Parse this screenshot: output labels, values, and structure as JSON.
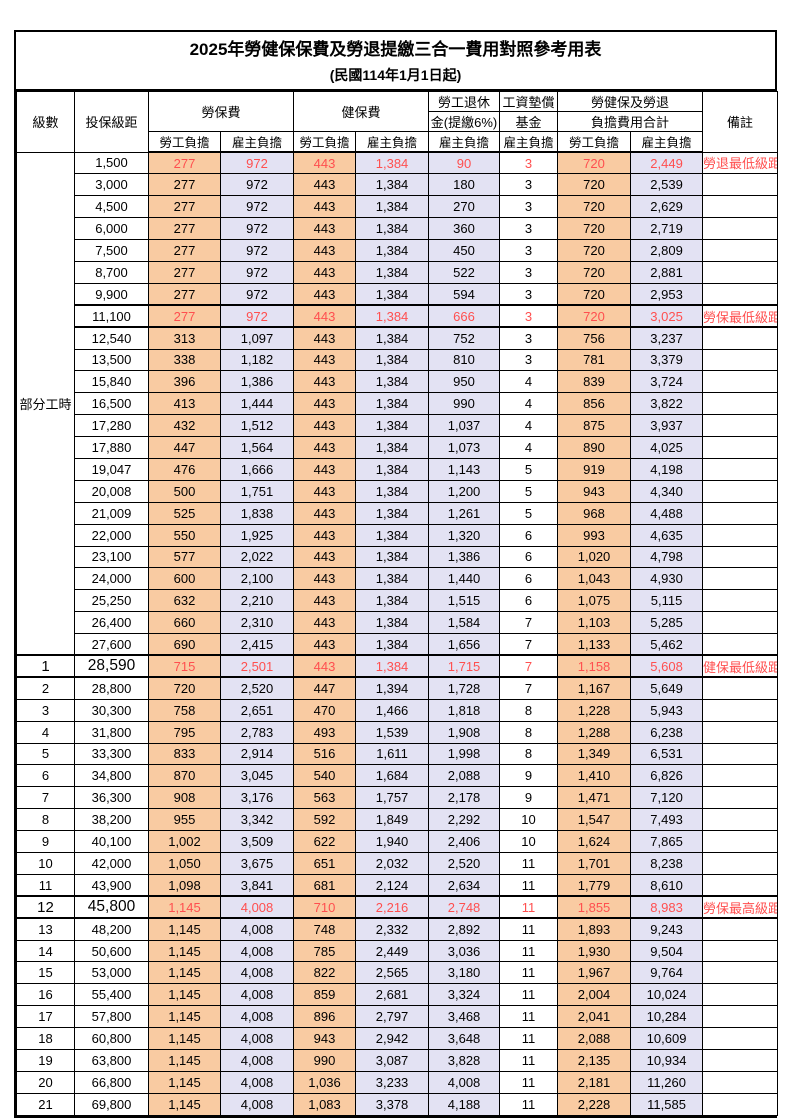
{
  "page_title": "2025年勞健保保費及勞退提繳三合一費用對照參考用表",
  "page_subtitle": "(民國114年1月1日起)",
  "colors": {
    "employee_col_bg": "#f9cba2",
    "employer_col_bg": "#e3e2f3",
    "highlight_red": "#ff4f4f",
    "border": "#000000"
  },
  "header": {
    "level": "級數",
    "salary_bracket": "投保級距",
    "labor_insurance": "勞保費",
    "health_insurance": "健保費",
    "pension_line1": "勞工退休",
    "pension_line2": "金(提繳6%)",
    "wage_fund_line1": "工資墊償",
    "wage_fund_line2": "基金",
    "total_line1": "勞健保及勞退",
    "total_line2": "負擔費用合計",
    "remark": "備註",
    "employee_burden": "勞工負擔",
    "employer_burden": "雇主負擔"
  },
  "table": {
    "part_time_label": "部分工時",
    "part_time_rowspan": 23,
    "rows": [
      {
        "pt": true,
        "salary": "1,500",
        "v": [
          "277",
          "972",
          "443",
          "1,384",
          "90",
          "3",
          "720",
          "2,449"
        ],
        "red": true,
        "remark": "勞退最低級距"
      },
      {
        "pt": true,
        "salary": "3,000",
        "v": [
          "277",
          "972",
          "443",
          "1,384",
          "180",
          "3",
          "720",
          "2,539"
        ]
      },
      {
        "pt": true,
        "salary": "4,500",
        "v": [
          "277",
          "972",
          "443",
          "1,384",
          "270",
          "3",
          "720",
          "2,629"
        ]
      },
      {
        "pt": true,
        "salary": "6,000",
        "v": [
          "277",
          "972",
          "443",
          "1,384",
          "360",
          "3",
          "720",
          "2,719"
        ]
      },
      {
        "pt": true,
        "salary": "7,500",
        "v": [
          "277",
          "972",
          "443",
          "1,384",
          "450",
          "3",
          "720",
          "2,809"
        ]
      },
      {
        "pt": true,
        "salary": "8,700",
        "v": [
          "277",
          "972",
          "443",
          "1,384",
          "522",
          "3",
          "720",
          "2,881"
        ]
      },
      {
        "pt": true,
        "salary": "9,900",
        "v": [
          "277",
          "972",
          "443",
          "1,384",
          "594",
          "3",
          "720",
          "2,953"
        ]
      },
      {
        "pt": true,
        "salary": "11,100",
        "v": [
          "277",
          "972",
          "443",
          "1,384",
          "666",
          "3",
          "720",
          "3,025"
        ],
        "red": true,
        "remark": "勞保最低級距",
        "thick": true
      },
      {
        "pt": true,
        "salary": "12,540",
        "v": [
          "313",
          "1,097",
          "443",
          "1,384",
          "752",
          "3",
          "756",
          "3,237"
        ]
      },
      {
        "pt": true,
        "salary": "13,500",
        "v": [
          "338",
          "1,182",
          "443",
          "1,384",
          "810",
          "3",
          "781",
          "3,379"
        ]
      },
      {
        "pt": true,
        "salary": "15,840",
        "v": [
          "396",
          "1,386",
          "443",
          "1,384",
          "950",
          "4",
          "839",
          "3,724"
        ]
      },
      {
        "pt": true,
        "salary": "16,500",
        "v": [
          "413",
          "1,444",
          "443",
          "1,384",
          "990",
          "4",
          "856",
          "3,822"
        ]
      },
      {
        "pt": true,
        "salary": "17,280",
        "v": [
          "432",
          "1,512",
          "443",
          "1,384",
          "1,037",
          "4",
          "875",
          "3,937"
        ]
      },
      {
        "pt": true,
        "salary": "17,880",
        "v": [
          "447",
          "1,564",
          "443",
          "1,384",
          "1,073",
          "4",
          "890",
          "4,025"
        ]
      },
      {
        "pt": true,
        "salary": "19,047",
        "v": [
          "476",
          "1,666",
          "443",
          "1,384",
          "1,143",
          "5",
          "919",
          "4,198"
        ]
      },
      {
        "pt": true,
        "salary": "20,008",
        "v": [
          "500",
          "1,751",
          "443",
          "1,384",
          "1,200",
          "5",
          "943",
          "4,340"
        ]
      },
      {
        "pt": true,
        "salary": "21,009",
        "v": [
          "525",
          "1,838",
          "443",
          "1,384",
          "1,261",
          "5",
          "968",
          "4,488"
        ]
      },
      {
        "pt": true,
        "salary": "22,000",
        "v": [
          "550",
          "1,925",
          "443",
          "1,384",
          "1,320",
          "6",
          "993",
          "4,635"
        ]
      },
      {
        "pt": true,
        "salary": "23,100",
        "v": [
          "577",
          "2,022",
          "443",
          "1,384",
          "1,386",
          "6",
          "1,020",
          "4,798"
        ]
      },
      {
        "pt": true,
        "salary": "24,000",
        "v": [
          "600",
          "2,100",
          "443",
          "1,384",
          "1,440",
          "6",
          "1,043",
          "4,930"
        ]
      },
      {
        "pt": true,
        "salary": "25,250",
        "v": [
          "632",
          "2,210",
          "443",
          "1,384",
          "1,515",
          "6",
          "1,075",
          "5,115"
        ]
      },
      {
        "pt": true,
        "salary": "26,400",
        "v": [
          "660",
          "2,310",
          "443",
          "1,384",
          "1,584",
          "7",
          "1,103",
          "5,285"
        ]
      },
      {
        "pt": true,
        "salary": "27,600",
        "v": [
          "690",
          "2,415",
          "443",
          "1,384",
          "1,656",
          "7",
          "1,133",
          "5,462"
        ]
      },
      {
        "level": "1",
        "salary": "28,590",
        "v": [
          "715",
          "2,501",
          "443",
          "1,384",
          "1,715",
          "7",
          "1,158",
          "5,608"
        ],
        "red": true,
        "remark": "健保最低級距",
        "thick": true,
        "emphasis": true
      },
      {
        "level": "2",
        "salary": "28,800",
        "v": [
          "720",
          "2,520",
          "447",
          "1,394",
          "1,728",
          "7",
          "1,167",
          "5,649"
        ]
      },
      {
        "level": "3",
        "salary": "30,300",
        "v": [
          "758",
          "2,651",
          "470",
          "1,466",
          "1,818",
          "8",
          "1,228",
          "5,943"
        ]
      },
      {
        "level": "4",
        "salary": "31,800",
        "v": [
          "795",
          "2,783",
          "493",
          "1,539",
          "1,908",
          "8",
          "1,288",
          "6,238"
        ]
      },
      {
        "level": "5",
        "salary": "33,300",
        "v": [
          "833",
          "2,914",
          "516",
          "1,611",
          "1,998",
          "8",
          "1,349",
          "6,531"
        ]
      },
      {
        "level": "6",
        "salary": "34,800",
        "v": [
          "870",
          "3,045",
          "540",
          "1,684",
          "2,088",
          "9",
          "1,410",
          "6,826"
        ]
      },
      {
        "level": "7",
        "salary": "36,300",
        "v": [
          "908",
          "3,176",
          "563",
          "1,757",
          "2,178",
          "9",
          "1,471",
          "7,120"
        ]
      },
      {
        "level": "8",
        "salary": "38,200",
        "v": [
          "955",
          "3,342",
          "592",
          "1,849",
          "2,292",
          "10",
          "1,547",
          "7,493"
        ]
      },
      {
        "level": "9",
        "salary": "40,100",
        "v": [
          "1,002",
          "3,509",
          "622",
          "1,940",
          "2,406",
          "10",
          "1,624",
          "7,865"
        ]
      },
      {
        "level": "10",
        "salary": "42,000",
        "v": [
          "1,050",
          "3,675",
          "651",
          "2,032",
          "2,520",
          "11",
          "1,701",
          "8,238"
        ]
      },
      {
        "level": "11",
        "salary": "43,900",
        "v": [
          "1,098",
          "3,841",
          "681",
          "2,124",
          "2,634",
          "11",
          "1,779",
          "8,610"
        ]
      },
      {
        "level": "12",
        "salary": "45,800",
        "v": [
          "1,145",
          "4,008",
          "710",
          "2,216",
          "2,748",
          "11",
          "1,855",
          "8,983"
        ],
        "red": true,
        "remark": "勞保最高級距",
        "thick": true,
        "emphasis": true
      },
      {
        "level": "13",
        "salary": "48,200",
        "v": [
          "1,145",
          "4,008",
          "748",
          "2,332",
          "2,892",
          "11",
          "1,893",
          "9,243"
        ]
      },
      {
        "level": "14",
        "salary": "50,600",
        "v": [
          "1,145",
          "4,008",
          "785",
          "2,449",
          "3,036",
          "11",
          "1,930",
          "9,504"
        ]
      },
      {
        "level": "15",
        "salary": "53,000",
        "v": [
          "1,145",
          "4,008",
          "822",
          "2,565",
          "3,180",
          "11",
          "1,967",
          "9,764"
        ]
      },
      {
        "level": "16",
        "salary": "55,400",
        "v": [
          "1,145",
          "4,008",
          "859",
          "2,681",
          "3,324",
          "11",
          "2,004",
          "10,024"
        ]
      },
      {
        "level": "17",
        "salary": "57,800",
        "v": [
          "1,145",
          "4,008",
          "896",
          "2,797",
          "3,468",
          "11",
          "2,041",
          "10,284"
        ]
      },
      {
        "level": "18",
        "salary": "60,800",
        "v": [
          "1,145",
          "4,008",
          "943",
          "2,942",
          "3,648",
          "11",
          "2,088",
          "10,609"
        ]
      },
      {
        "level": "19",
        "salary": "63,800",
        "v": [
          "1,145",
          "4,008",
          "990",
          "3,087",
          "3,828",
          "11",
          "2,135",
          "10,934"
        ]
      },
      {
        "level": "20",
        "salary": "66,800",
        "v": [
          "1,145",
          "4,008",
          "1,036",
          "3,233",
          "4,008",
          "11",
          "2,181",
          "11,260"
        ]
      },
      {
        "level": "21",
        "salary": "69,800",
        "v": [
          "1,145",
          "4,008",
          "1,083",
          "3,378",
          "4,188",
          "11",
          "2,228",
          "11,585"
        ]
      }
    ]
  }
}
